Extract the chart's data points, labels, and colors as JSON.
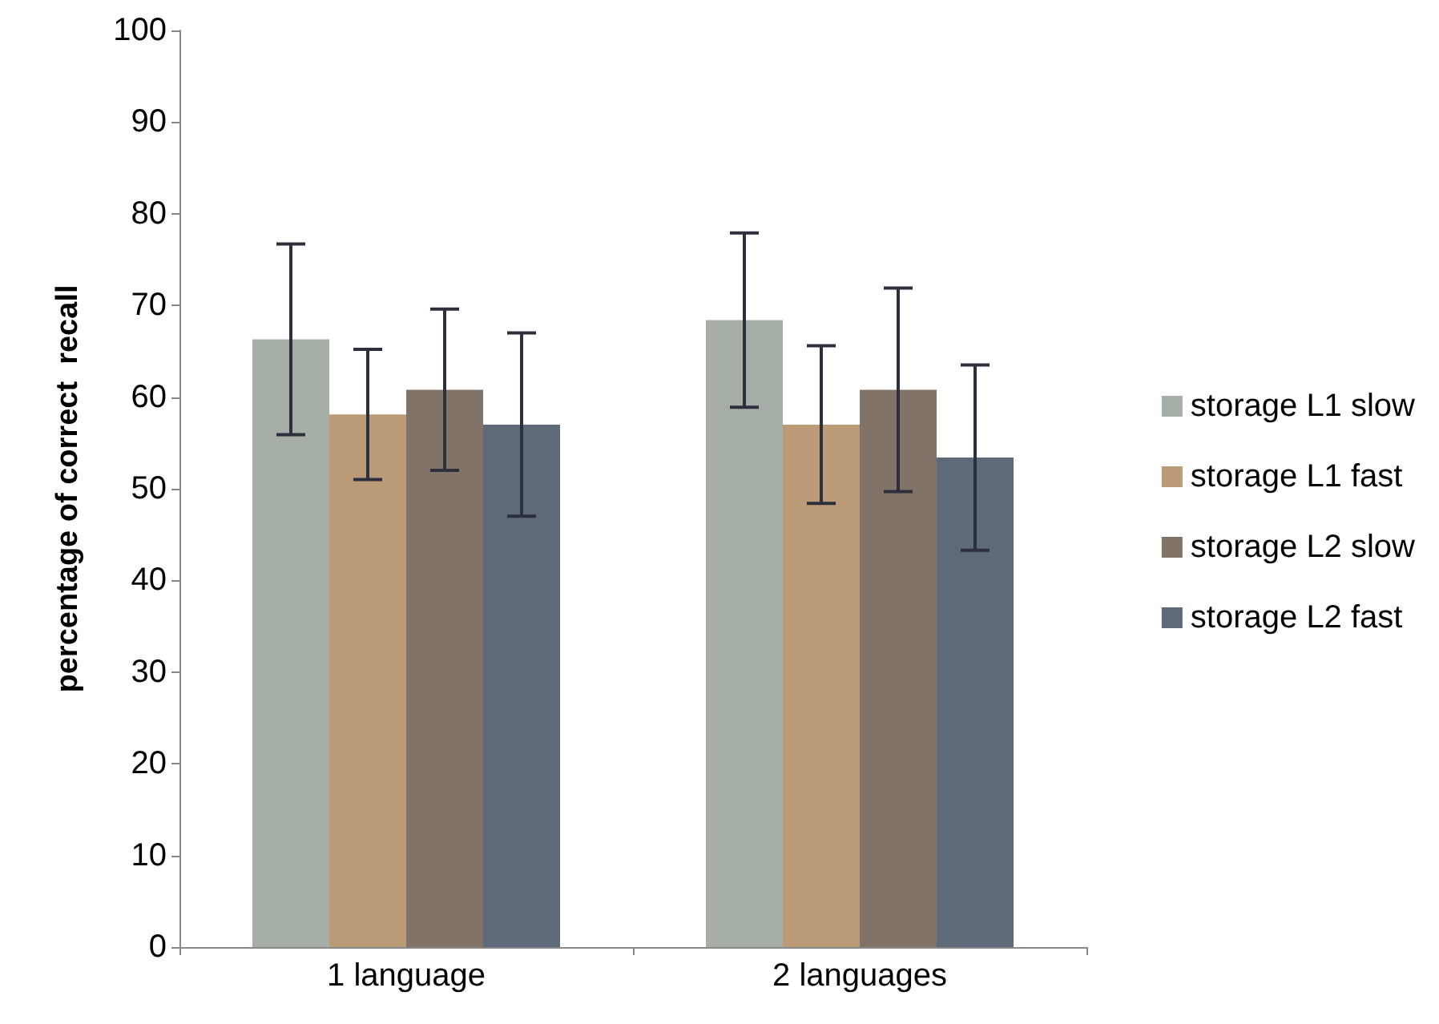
{
  "chart_data": {
    "type": "bar",
    "ylabel": "percentage of correct  recall",
    "categories": [
      "1 language",
      "2 languages"
    ],
    "series": [
      {
        "name": "storage L1 slow",
        "color": "#a6aea8",
        "values": [
          66.3,
          68.4
        ],
        "errors": [
          10.4,
          9.5
        ]
      },
      {
        "name": "storage L1 fast",
        "color": "#bb9b77",
        "values": [
          58.1,
          57.0
        ],
        "errors": [
          7.1,
          8.6
        ]
      },
      {
        "name": "storage L2 slow",
        "color": "#827368",
        "values": [
          60.8,
          60.8
        ],
        "errors": [
          8.8,
          11.1
        ]
      },
      {
        "name": "storage L2 fast",
        "color": "#5e6a7a",
        "values": [
          57.0,
          53.4
        ],
        "errors": [
          10.0,
          10.1
        ]
      }
    ],
    "ylim": [
      0,
      100
    ],
    "yticks": [
      0,
      10,
      20,
      30,
      40,
      50,
      60,
      70,
      80,
      90,
      100
    ],
    "grid": false,
    "legend": "right"
  }
}
